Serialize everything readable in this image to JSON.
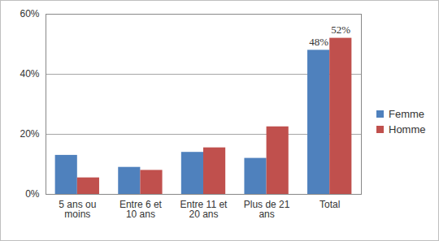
{
  "chart_data": {
    "type": "bar",
    "categories": [
      "5 ans ou moins",
      "Entre 6 et 10 ans",
      "Entre 11 et 20 ans",
      "Plus de 21 ans",
      "Total"
    ],
    "series": [
      {
        "name": "Femme",
        "color": "#4F81BD",
        "values": [
          13,
          9,
          14,
          12,
          48
        ],
        "value_labels": [
          null,
          null,
          null,
          null,
          "48%"
        ]
      },
      {
        "name": "Homme",
        "color": "#C0504D",
        "values": [
          5.5,
          8,
          15.5,
          22.5,
          52
        ],
        "value_labels": [
          null,
          null,
          null,
          null,
          "52%"
        ]
      }
    ],
    "ylim": [
      0,
      60
    ],
    "yticks": [
      {
        "value": 0,
        "label": "0%"
      },
      {
        "value": 20,
        "label": "20%"
      },
      {
        "value": 40,
        "label": "40%"
      },
      {
        "value": 60,
        "label": "60%"
      }
    ],
    "grid": true,
    "legend": "right",
    "data_labels": true
  }
}
